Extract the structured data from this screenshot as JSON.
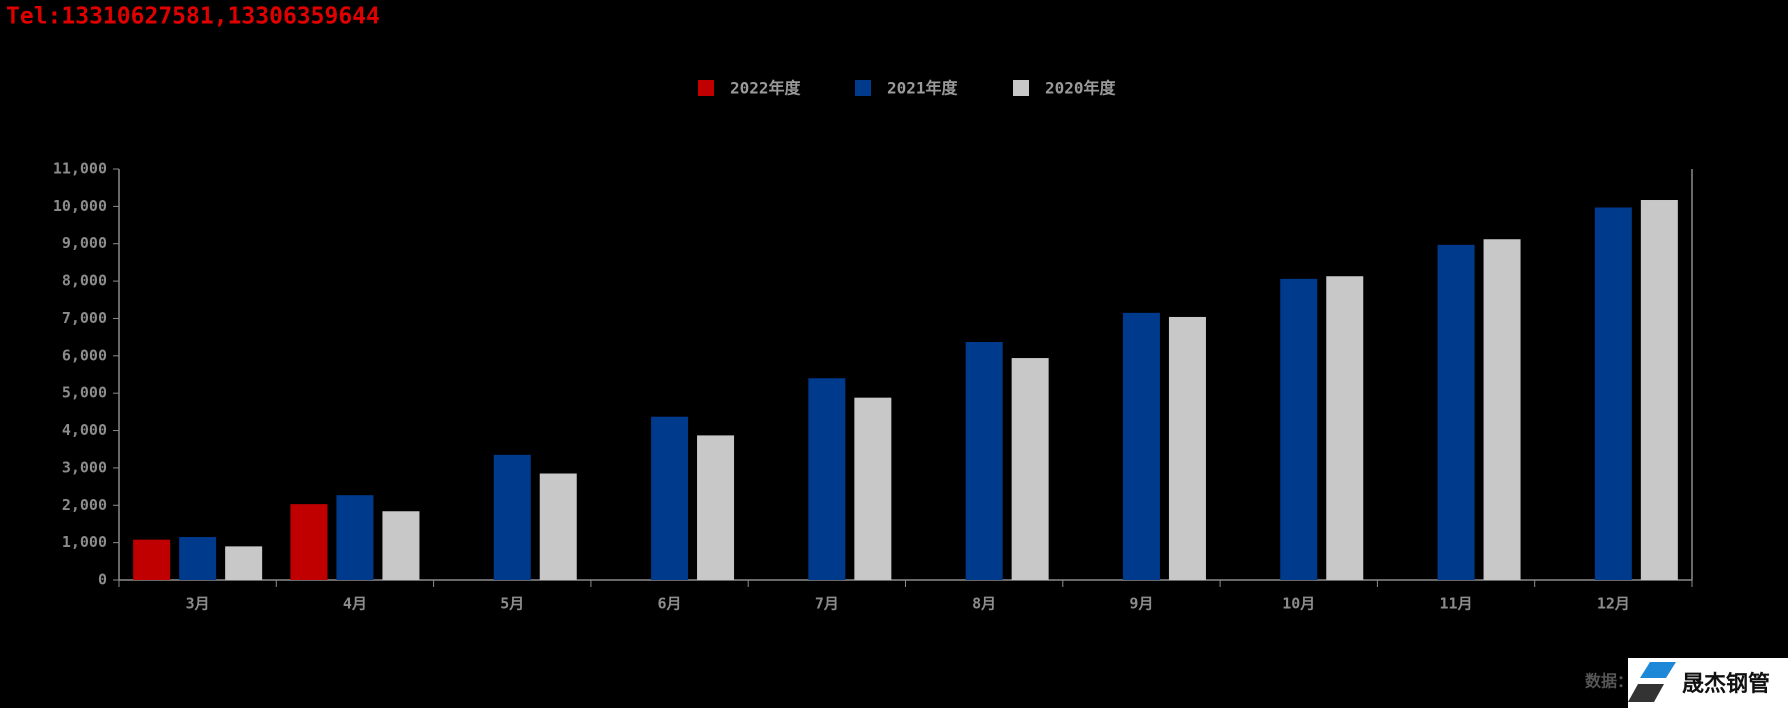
{
  "tel": "Tel:13310627581,13306359644",
  "chart_data": {
    "type": "bar",
    "categories": [
      "3月",
      "4月",
      "5月",
      "6月",
      "7月",
      "8月",
      "9月",
      "10月",
      "11月",
      "12月"
    ],
    "series": [
      {
        "name": "2022年度",
        "color": "#c00000",
        "values": [
          1080,
          2030,
          null,
          null,
          null,
          null,
          null,
          null,
          null,
          null
        ]
      },
      {
        "name": "2021年度",
        "color": "#003a8c",
        "values": [
          1150,
          2270,
          3350,
          4370,
          5400,
          6370,
          7150,
          8060,
          8970,
          9970
        ]
      },
      {
        "name": "2020年度",
        "color": "#c8c8c8",
        "values": [
          900,
          1840,
          2850,
          3870,
          4880,
          5940,
          7040,
          8130,
          9120,
          10170
        ]
      }
    ],
    "ylim": [
      0,
      11000
    ],
    "yticks": [
      0,
      {
        "value": 1000,
        "label": "1,000"
      },
      {
        "value": 2000,
        "label": "2,000"
      },
      {
        "value": 3000,
        "label": "3,000"
      },
      {
        "value": 4000,
        "label": "4,000"
      },
      {
        "value": 5000,
        "label": "5,000"
      },
      {
        "value": 6000,
        "label": "6,000"
      },
      {
        "value": 7000,
        "label": "7,000"
      },
      {
        "value": 8000,
        "label": "8,000"
      },
      {
        "value": 9000,
        "label": "9,000"
      },
      {
        "value": 10000,
        "label": "10,000"
      },
      {
        "value": 11000,
        "label": "11,000"
      }
    ],
    "legend": "top"
  },
  "source": "数据：",
  "logo": "晟杰钢管"
}
